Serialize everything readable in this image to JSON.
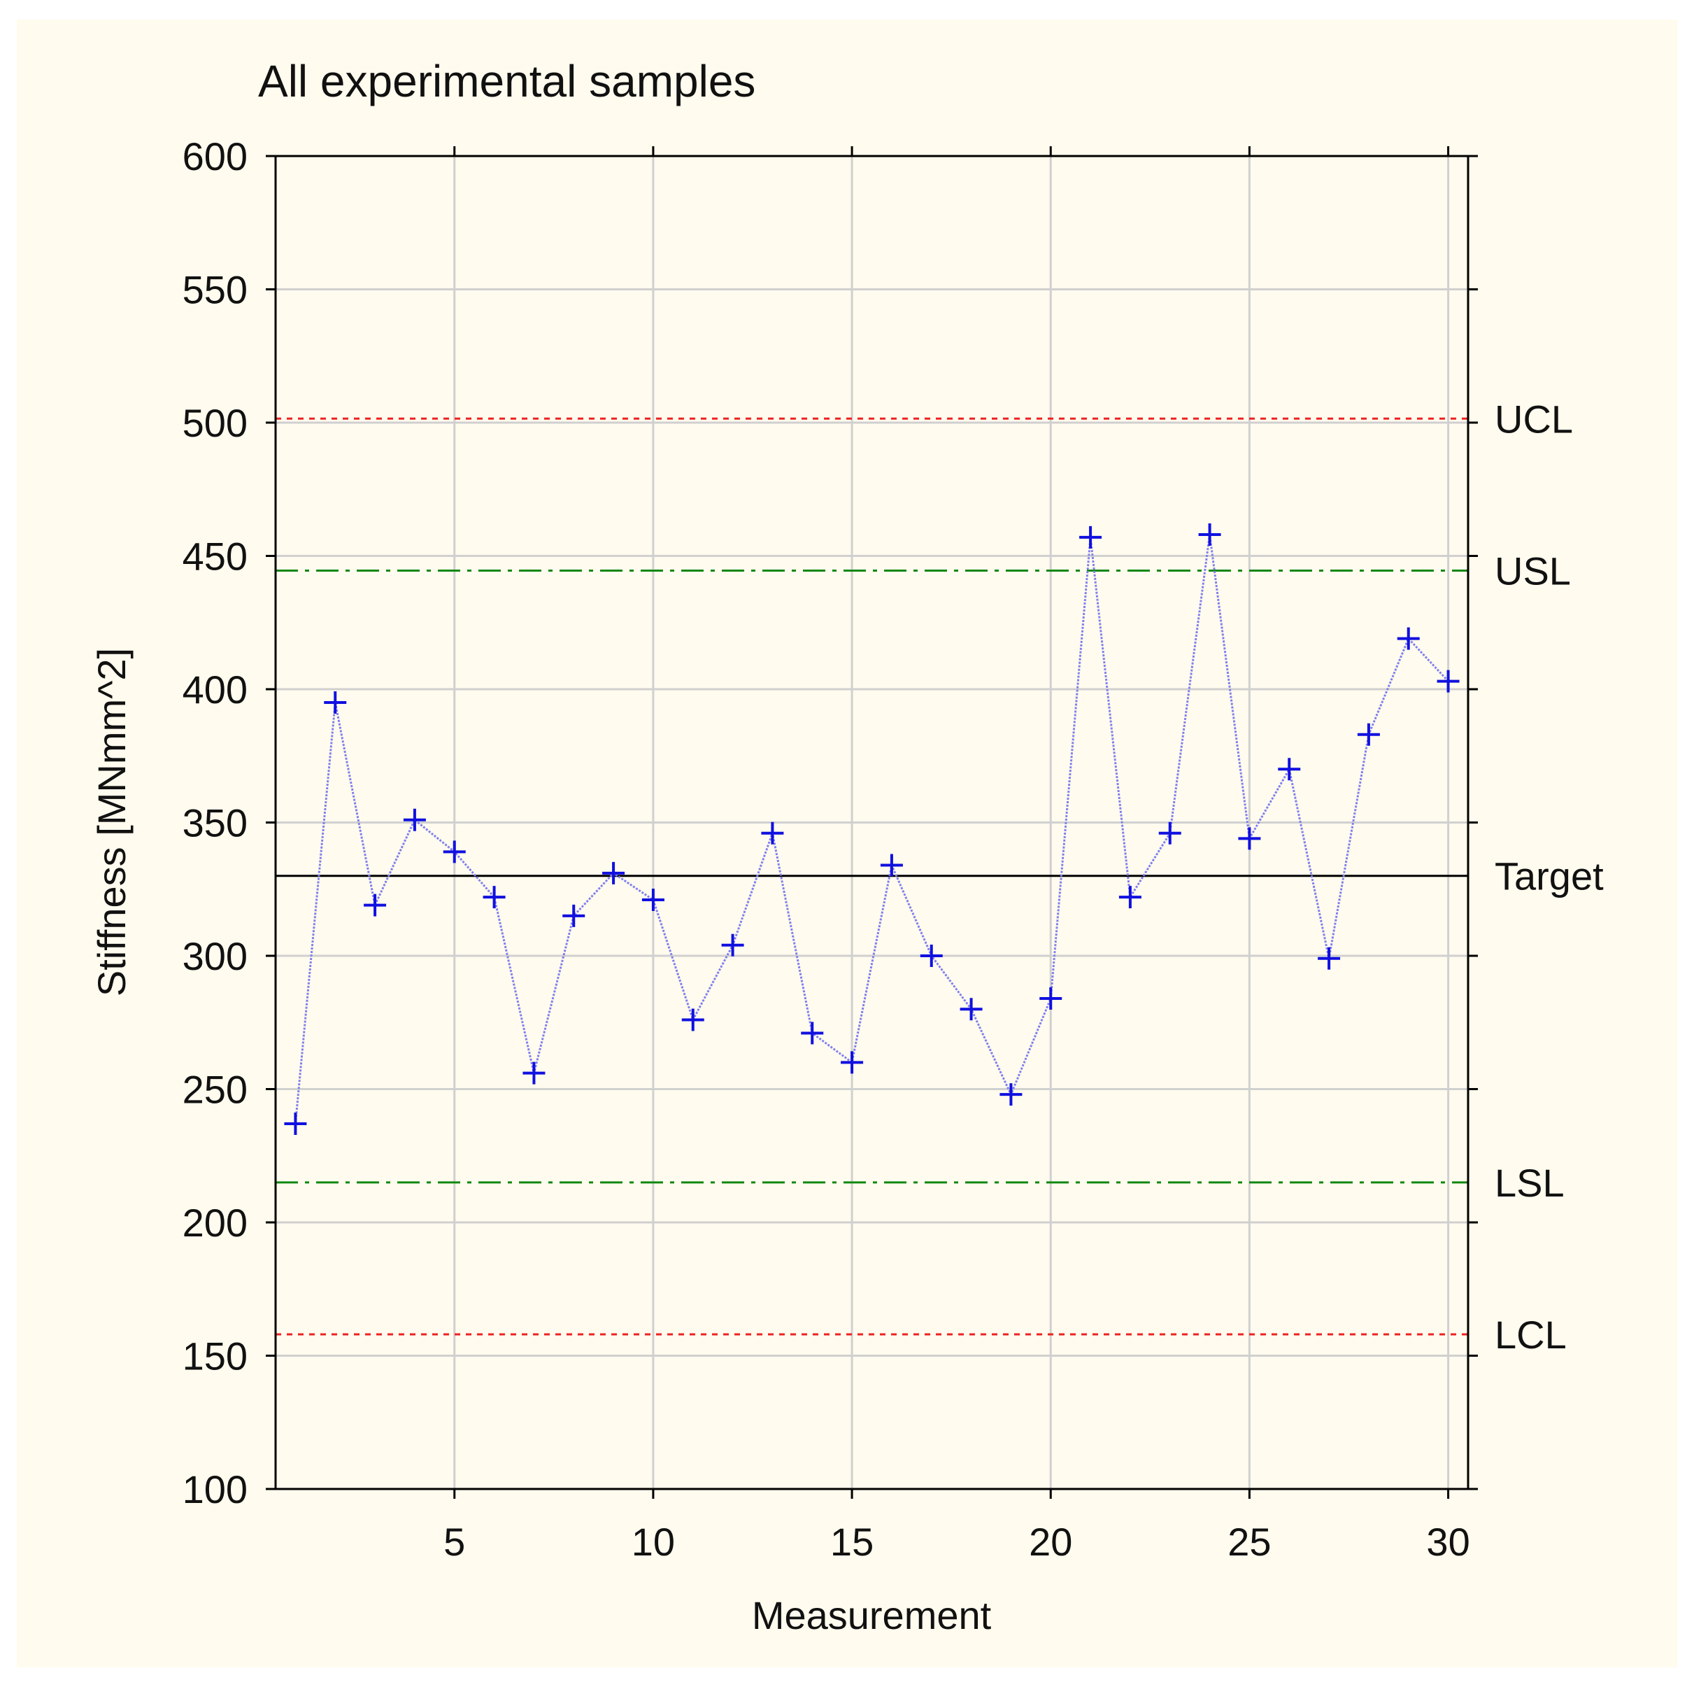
{
  "chart_data": {
    "type": "line",
    "title": "All experimental samples",
    "xlabel": "Measurement",
    "ylabel": "Stiffness [MNmm^2]",
    "xlim": [
      0.5,
      30.5
    ],
    "ylim": [
      100,
      600
    ],
    "x_ticks": [
      5,
      10,
      15,
      20,
      25,
      30
    ],
    "y_ticks": [
      100,
      150,
      200,
      250,
      300,
      350,
      400,
      450,
      500,
      550,
      600
    ],
    "grid": true,
    "series": [
      {
        "name": "Stiffness",
        "marker": "plus",
        "color": "#1010e0",
        "line_color": "#8080ee",
        "x": [
          1,
          2,
          3,
          4,
          5,
          6,
          7,
          8,
          9,
          10,
          11,
          12,
          13,
          14,
          15,
          16,
          17,
          18,
          19,
          20,
          21,
          22,
          23,
          24,
          25,
          26,
          27,
          28,
          29,
          30
        ],
        "values": [
          237,
          395,
          319,
          351,
          339,
          322,
          256,
          315,
          331,
          321,
          276,
          304,
          346,
          271,
          260,
          334,
          300,
          280,
          248,
          284,
          457,
          322,
          346,
          458,
          344,
          370,
          299,
          383,
          419,
          403
        ]
      }
    ],
    "reference_lines": [
      {
        "label": "UCL",
        "value": 501.5,
        "color": "#ee2222",
        "style": "dotted"
      },
      {
        "label": "USL",
        "value": 444.5,
        "color": "#118811",
        "style": "dashdot"
      },
      {
        "label": "Target",
        "value": 330,
        "color": "#000000",
        "style": "solid"
      },
      {
        "label": "LSL",
        "value": 215,
        "color": "#118811",
        "style": "dashdot"
      },
      {
        "label": "LCL",
        "value": 158,
        "color": "#ee2222",
        "style": "dotted"
      }
    ]
  }
}
